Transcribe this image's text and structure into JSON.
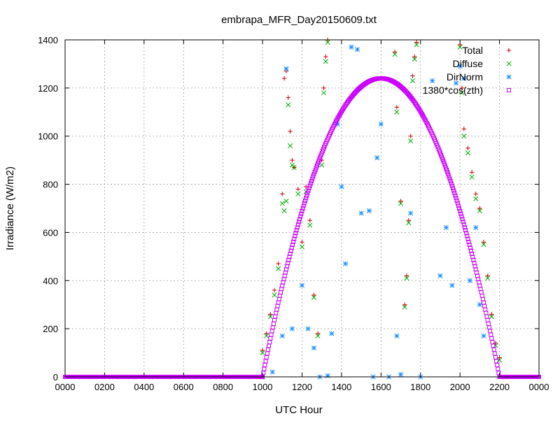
{
  "chart_data": {
    "type": "scatter",
    "title": "embrapa_MFR_Day20150609.txt",
    "xlabel": "UTC Hour",
    "ylabel": "Irradiance (W/m2)",
    "xlim": [
      0,
      24
    ],
    "ylim": [
      0,
      1400
    ],
    "x_ticks": [
      0,
      2,
      4,
      6,
      8,
      10,
      12,
      14,
      16,
      18,
      20,
      22,
      24
    ],
    "x_tick_labels": [
      "0000",
      "0200",
      "0400",
      "0600",
      "0800",
      "1000",
      "1200",
      "1400",
      "1600",
      "1800",
      "2000",
      "2200",
      "0000"
    ],
    "y_ticks": [
      0,
      200,
      400,
      600,
      800,
      1000,
      1200,
      1400
    ],
    "y_tick_labels": [
      "0",
      "200",
      "400",
      "600",
      "800",
      "1000",
      "1200",
      "1400"
    ],
    "grid": true,
    "legend_position": "top-right",
    "series": [
      {
        "name": "Total",
        "marker": "plus",
        "color": "#cc0000",
        "x": [
          10.0,
          10.2,
          10.4,
          10.6,
          10.8,
          11.0,
          11.1,
          11.2,
          11.3,
          11.4,
          11.5,
          11.6,
          11.8,
          12.0,
          12.2,
          12.4,
          12.6,
          12.8,
          13.0,
          13.1,
          13.2,
          13.3,
          16.7,
          16.8,
          17.0,
          17.2,
          17.3,
          17.4,
          17.5,
          17.6,
          17.7,
          17.8,
          20.0,
          20.1,
          20.2,
          20.4,
          20.6,
          20.8,
          21.0,
          21.2,
          21.4,
          21.6,
          21.8,
          22.0
        ],
        "y": [
          110,
          180,
          260,
          360,
          470,
          760,
          1240,
          1270,
          1160,
          1020,
          900,
          870,
          780,
          560,
          790,
          650,
          340,
          180,
          900,
          1200,
          1330,
          1400,
          1350,
          1120,
          730,
          300,
          420,
          650,
          1000,
          1250,
          1330,
          1390,
          1380,
          1200,
          1030,
          950,
          850,
          760,
          700,
          560,
          420,
          260,
          140,
          80
        ]
      },
      {
        "name": "Diffuse",
        "marker": "cross",
        "color": "#00aa00",
        "x": [
          10.0,
          10.2,
          10.4,
          10.6,
          10.8,
          11.0,
          11.1,
          11.2,
          11.3,
          11.4,
          11.5,
          11.6,
          11.8,
          12.0,
          12.2,
          12.4,
          12.6,
          12.8,
          13.0,
          13.1,
          13.2,
          13.3,
          16.7,
          16.8,
          17.0,
          17.2,
          17.3,
          17.4,
          17.5,
          17.6,
          17.7,
          17.8,
          20.0,
          20.1,
          20.2,
          20.4,
          20.6,
          20.8,
          21.0,
          21.2,
          21.4,
          21.6,
          21.8,
          22.0
        ],
        "y": [
          100,
          170,
          250,
          340,
          450,
          720,
          690,
          730,
          1130,
          960,
          880,
          870,
          760,
          540,
          770,
          630,
          330,
          170,
          880,
          1180,
          1310,
          1390,
          1340,
          1100,
          720,
          290,
          410,
          640,
          980,
          1230,
          1320,
          1380,
          1370,
          1180,
          1000,
          930,
          830,
          740,
          690,
          550,
          410,
          250,
          130,
          70
        ]
      },
      {
        "name": "DirNorm",
        "marker": "star",
        "color": "#1e90ff",
        "x": [
          10.0,
          10.5,
          11.0,
          11.2,
          11.5,
          12.0,
          12.3,
          12.6,
          12.9,
          13.3,
          13.5,
          13.8,
          14.0,
          14.2,
          14.5,
          14.8,
          15.0,
          15.4,
          15.6,
          15.8,
          16.0,
          16.4,
          16.8,
          17.0,
          17.5,
          18.0,
          18.6,
          19.0,
          19.3,
          19.6,
          19.8,
          20.0,
          20.2,
          20.5,
          20.8,
          21.0,
          21.2
        ],
        "y": [
          0,
          20,
          170,
          1280,
          200,
          380,
          200,
          120,
          0,
          5,
          180,
          1050,
          790,
          470,
          1370,
          1360,
          680,
          690,
          0,
          910,
          1050,
          0,
          170,
          10,
          680,
          0,
          1230,
          420,
          620,
          380,
          1220,
          1290,
          1240,
          400,
          620,
          300,
          170
        ]
      },
      {
        "name": "1380*cos(zth)",
        "marker": "square",
        "color": "#cc00ff",
        "curve": {
          "peak_x": 16.0,
          "peak_y": 1240,
          "start_x": 10.0,
          "end_x": 22.0
        }
      }
    ]
  }
}
